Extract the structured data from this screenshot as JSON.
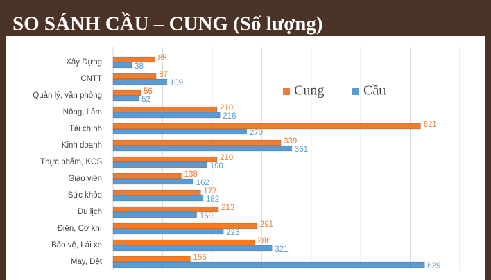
{
  "chart_data": {
    "type": "bar",
    "orientation": "horizontal",
    "title": "SO SÁNH CẦU – CUNG (Số lượng)",
    "categories": [
      "Xây Dựng",
      "CNTT",
      "Quản lý, văn phòng",
      "Nông, Lâm",
      "Tài chính",
      "Kinh doanh",
      "Thực phẩm, KCS",
      "Giáo viên",
      "Sức khỏe",
      "Du lịch",
      "Điện, Cơ khí",
      "Bảo vệ, Lái xe",
      "May, Dệt"
    ],
    "series": [
      {
        "name": "Cung",
        "color": "#ed7d31",
        "values": [
          85,
          87,
          56,
          210,
          621,
          339,
          210,
          138,
          177,
          213,
          291,
          286,
          156
        ]
      },
      {
        "name": "Cầu",
        "color": "#5b9bd5",
        "values": [
          38,
          109,
          52,
          216,
          270,
          361,
          190,
          162,
          182,
          169,
          223,
          321,
          629
        ]
      }
    ],
    "xlim": [
      0,
      700
    ],
    "xticks": [
      0,
      100,
      200,
      300,
      400,
      500,
      600,
      700
    ],
    "grid": true,
    "legend": "upper right"
  }
}
